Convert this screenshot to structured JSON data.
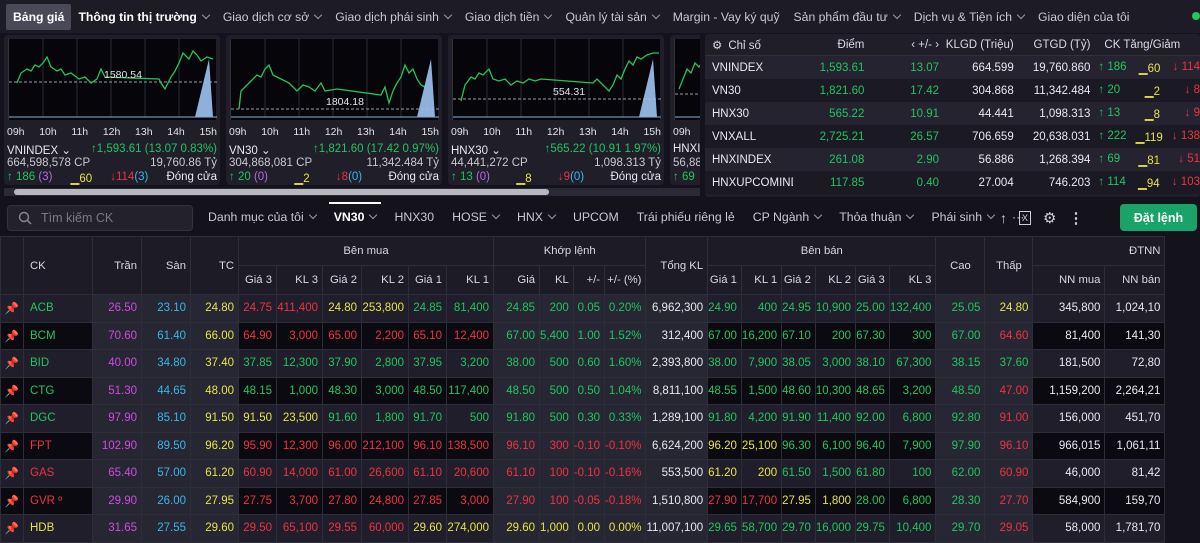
{
  "topnav": {
    "items": [
      {
        "label": "Bảng giá",
        "active": true
      },
      {
        "label": "Thông tin thị trường",
        "chevron": true
      },
      {
        "label": "Giao dịch cơ sở",
        "chevron": true
      },
      {
        "label": "Giao dịch phái sinh",
        "chevron": true
      },
      {
        "label": "Giao dịch tiền",
        "chevron": true
      },
      {
        "label": "Quản lý tài sản",
        "chevron": true
      },
      {
        "label": "Margin - Vay ký quỹ"
      },
      {
        "label": "Sản phẩm đầu tư",
        "chevron": true
      },
      {
        "label": "Dịch vụ & Tiện ích",
        "chevron": true
      },
      {
        "label": "Giao diện của tôi"
      }
    ]
  },
  "cards": [
    {
      "name": "VNINDEX",
      "ref_label": "1580.54",
      "value": "1,593.61 (13.07 0.83%)",
      "volume": "664,598,578 CP",
      "valueTy": "19,760.86 Tỷ",
      "up": "186",
      "up_ceil": "(3)",
      "flat": "60",
      "down": "114",
      "down_floor": "(3)",
      "status": "Đóng cửa"
    },
    {
      "name": "VN30",
      "ref_label": "1804.18",
      "value": "1,821.60 (17.42 0.97%)",
      "volume": "304,868,081 CP",
      "valueTy": "11,342.484 Tỷ",
      "up": "20",
      "up_ceil": "(0)",
      "flat": "2",
      "down": "8",
      "down_floor": "(0)",
      "status": "Đóng cửa"
    },
    {
      "name": "HNX30",
      "ref_label": "554.31",
      "value": "565.22 (10.91 1.97%)",
      "volume": "44,441,272 CP",
      "valueTy": "1,098.313 Tỷ",
      "up": "13",
      "up_ceil": "(0)",
      "flat": "8",
      "down": "9",
      "down_floor": "(0)",
      "status": "Đóng cửa"
    },
    {
      "name": "HNXI",
      "volume": "56,88",
      "up": "69"
    }
  ],
  "times": [
    "09h",
    "10h",
    "11h",
    "12h",
    "13h",
    "14h",
    "15h"
  ],
  "index_table": {
    "headers": {
      "name": "Chỉ số",
      "point": "Điểm",
      "change": "‹  +/-  ›",
      "klgd": "KLGD (Triệu)",
      "gtgd": "GTGD (Tỷ)",
      "updown": "CK Tăng/Giảm"
    },
    "rows": [
      {
        "name": "VNINDEX",
        "point": "1,593.61",
        "change": "13.07",
        "klgd": "664.599",
        "gtgd": "19,760.860",
        "up": "186",
        "flat": "60",
        "down": "114"
      },
      {
        "name": "VN30",
        "point": "1,821.60",
        "change": "17.42",
        "klgd": "304.868",
        "gtgd": "11,342.484",
        "up": "20",
        "flat": "2",
        "down": "8"
      },
      {
        "name": "HNX30",
        "point": "565.22",
        "change": "10.91",
        "klgd": "44.441",
        "gtgd": "1,098.313",
        "up": "13",
        "flat": "8",
        "down": "9"
      },
      {
        "name": "VNXALL",
        "point": "2,725.21",
        "change": "26.57",
        "klgd": "706.659",
        "gtgd": "20,638.031",
        "up": "222",
        "flat": "119",
        "down": "138"
      },
      {
        "name": "HNXINDEX",
        "point": "261.08",
        "change": "2.90",
        "klgd": "56.886",
        "gtgd": "1,268.394",
        "up": "69",
        "flat": "81",
        "down": "51"
      },
      {
        "name": "HNXUPCOMINDE",
        "point": "117.85",
        "change": "0.40",
        "klgd": "27.004",
        "gtgd": "746.203",
        "up": "114",
        "flat": "94",
        "down": "103"
      }
    ]
  },
  "search": {
    "placeholder": "Tìm kiếm CK"
  },
  "tabs": [
    {
      "label": "Danh mục của tôi",
      "chevron": true
    },
    {
      "label": "VN30",
      "chevron": true,
      "active": true
    },
    {
      "label": "HNX30"
    },
    {
      "label": "HOSE",
      "chevron": true
    },
    {
      "label": "HNX",
      "chevron": true
    },
    {
      "label": "UPCOM"
    },
    {
      "label": "Trái phiếu riêng lẻ"
    },
    {
      "label": "CP Ngành",
      "chevron": true
    },
    {
      "label": "Thỏa thuận",
      "chevron": true
    },
    {
      "label": "Phái sinh",
      "chevron": true
    },
    {
      "label": "···"
    }
  ],
  "order_button": "Đặt lệnh",
  "board": {
    "group_headers": {
      "buy": "Bên mua",
      "match": "Khớp lệnh",
      "sell": "Bên bán",
      "foreign": "ĐTNN"
    },
    "headers": {
      "ck": "CK",
      "ceil": "Trần",
      "floor": "Sàn",
      "ref": "TC",
      "b3p": "Giá 3",
      "b3v": "KL 3",
      "b2p": "Giá 2",
      "b2v": "KL 2",
      "b1p": "Giá 1",
      "b1v": "KL 1",
      "mp": "Giá",
      "mv": "KL",
      "ch": "+/-",
      "pct": "+/- (%)",
      "total": "Tổng KL",
      "s1p": "Giá 1",
      "s1v": "KL 1",
      "s2p": "Giá 2",
      "s2v": "KL 2",
      "s3p": "Giá 3",
      "s3v": "KL 3",
      "high": "Cao",
      "low": "Thấp",
      "nnb": "NN mua",
      "nns": "NN bán"
    },
    "rows": [
      {
        "ck": "ACB",
        "c": "up",
        "ceil": "26.50",
        "floor": "23.10",
        "ref": "24.80",
        "b3p": "24.75",
        "b3c": "dn",
        "b3v": "411,400",
        "b2p": "24.80",
        "b2c": "ref",
        "b2v": "253,800",
        "b1p": "24.85",
        "b1c": "up",
        "b1v": "81,400",
        "mp": "24.85",
        "mc": "up",
        "mv": "200",
        "ch": "0.05",
        "pct": "0.20%",
        "total": "6,962,300",
        "s1p": "24.90",
        "s1c": "up",
        "s1v": "400",
        "s2p": "24.95",
        "s2c": "up",
        "s2v": "10,900",
        "s3p": "25.00",
        "s3c": "up",
        "s3v": "132,400",
        "high": "25.05",
        "hc": "up",
        "low": "24.80",
        "lc": "ref",
        "nnb": "345,800",
        "nns": "1,024,10"
      },
      {
        "ck": "BCM",
        "c": "up",
        "ceil": "70.60",
        "floor": "61.40",
        "ref": "66.00",
        "b3p": "64.90",
        "b3c": "dn",
        "b3v": "3,000",
        "b2p": "65.00",
        "b2c": "dn",
        "b2v": "2,200",
        "b1p": "65.10",
        "b1c": "dn",
        "b1v": "12,400",
        "mp": "67.00",
        "mc": "up",
        "mv": "5,400",
        "ch": "1.00",
        "pct": "1.52%",
        "total": "312,400",
        "s1p": "67.00",
        "s1c": "up",
        "s1v": "16,200",
        "s2p": "67.10",
        "s2c": "up",
        "s2v": "200",
        "s3p": "67.30",
        "s3c": "up",
        "s3v": "300",
        "high": "67.00",
        "hc": "up",
        "low": "64.60",
        "lc": "dn",
        "nnb": "81,400",
        "nns": "141,30"
      },
      {
        "ck": "BID",
        "c": "up",
        "ceil": "40.00",
        "floor": "34.80",
        "ref": "37.40",
        "b3p": "37.85",
        "b3c": "up",
        "b3v": "12,300",
        "b2p": "37.90",
        "b2c": "up",
        "b2v": "2,800",
        "b1p": "37.95",
        "b1c": "up",
        "b1v": "3,200",
        "mp": "38.00",
        "mc": "up",
        "mv": "500",
        "ch": "0.60",
        "pct": "1.60%",
        "total": "2,393,800",
        "s1p": "38.00",
        "s1c": "up",
        "s1v": "7,900",
        "s2p": "38.05",
        "s2c": "up",
        "s2v": "3,000",
        "s3p": "38.10",
        "s3c": "up",
        "s3v": "67,300",
        "high": "38.15",
        "hc": "up",
        "low": "37.60",
        "lc": "up",
        "nnb": "181,500",
        "nns": "72,80"
      },
      {
        "ck": "CTG",
        "c": "up",
        "ceil": "51.30",
        "floor": "44.65",
        "ref": "48.00",
        "b3p": "48.15",
        "b3c": "up",
        "b3v": "1,000",
        "b2p": "48.30",
        "b2c": "up",
        "b2v": "3,000",
        "b1p": "48.50",
        "b1c": "up",
        "b1v": "117,400",
        "mp": "48.50",
        "mc": "up",
        "mv": "500",
        "ch": "0.50",
        "pct": "1.04%",
        "total": "8,811,100",
        "s1p": "48.55",
        "s1c": "up",
        "s1v": "1,500",
        "s2p": "48.60",
        "s2c": "up",
        "s2v": "10,300",
        "s3p": "48.65",
        "s3c": "up",
        "s3v": "3,200",
        "high": "48.50",
        "hc": "up",
        "low": "47.00",
        "lc": "dn",
        "nnb": "1,159,200",
        "nns": "2,264,21"
      },
      {
        "ck": "DGC",
        "c": "up",
        "ceil": "97.90",
        "floor": "85.10",
        "ref": "91.50",
        "b3p": "91.50",
        "b3c": "ref",
        "b3v": "23,500",
        "b2p": "91.60",
        "b2c": "up",
        "b2v": "1,800",
        "b1p": "91.70",
        "b1c": "up",
        "b1v": "500",
        "mp": "91.80",
        "mc": "up",
        "mv": "500",
        "ch": "0.30",
        "pct": "0.33%",
        "total": "1,289,100",
        "s1p": "91.80",
        "s1c": "up",
        "s1v": "4,200",
        "s2p": "91.90",
        "s2c": "up",
        "s2v": "11,400",
        "s3p": "92.00",
        "s3c": "up",
        "s3v": "6,800",
        "high": "92.80",
        "hc": "up",
        "low": "91.00",
        "lc": "dn",
        "nnb": "156,000",
        "nns": "451,70"
      },
      {
        "ck": "FPT",
        "c": "dn",
        "ceil": "102.90",
        "floor": "89.50",
        "ref": "96.20",
        "b3p": "95.90",
        "b3c": "dn",
        "b3v": "12,300",
        "b2p": "96.00",
        "b2c": "dn",
        "b2v": "212,100",
        "b1p": "96.10",
        "b1c": "dn",
        "b1v": "138,500",
        "mp": "96.10",
        "mc": "dn",
        "mv": "300",
        "ch": "-0.10",
        "pct": "-0.10%",
        "total": "6,624,200",
        "s1p": "96.20",
        "s1c": "ref",
        "s1v": "25,100",
        "s2p": "96.30",
        "s2c": "up",
        "s2v": "6,100",
        "s3p": "96.40",
        "s3c": "up",
        "s3v": "7,900",
        "high": "97.90",
        "hc": "up",
        "low": "96.10",
        "lc": "dn",
        "nnb": "966,015",
        "nns": "1,061,11"
      },
      {
        "ck": "GAS",
        "c": "dn",
        "ceil": "65.40",
        "floor": "57.00",
        "ref": "61.20",
        "b3p": "60.90",
        "b3c": "dn",
        "b3v": "14,000",
        "b2p": "61.00",
        "b2c": "dn",
        "b2v": "26,600",
        "b1p": "61.10",
        "b1c": "dn",
        "b1v": "20,600",
        "mp": "61.10",
        "mc": "dn",
        "mv": "100",
        "ch": "-0.10",
        "pct": "-0.16%",
        "total": "553,500",
        "s1p": "61.20",
        "s1c": "ref",
        "s1v": "200",
        "s2p": "61.50",
        "s2c": "up",
        "s2v": "1,500",
        "s3p": "61.80",
        "s3c": "up",
        "s3v": "100",
        "high": "62.00",
        "hc": "up",
        "low": "60.90",
        "lc": "dn",
        "nnb": "46,000",
        "nns": "81,42"
      },
      {
        "ck": "GVR º",
        "c": "dn",
        "ceil": "29.90",
        "floor": "26.00",
        "ref": "27.95",
        "b3p": "27.75",
        "b3c": "dn",
        "b3v": "3,700",
        "b2p": "27.80",
        "b2c": "dn",
        "b2v": "24,800",
        "b1p": "27.85",
        "b1c": "dn",
        "b1v": "3,000",
        "mp": "27.90",
        "mc": "dn",
        "mv": "100",
        "ch": "-0.05",
        "pct": "-0.18%",
        "total": "1,510,800",
        "s1p": "27.90",
        "s1c": "dn",
        "s1v": "17,700",
        "s2p": "27.95",
        "s2c": "ref",
        "s2v": "1,800",
        "s3p": "28.00",
        "s3c": "up",
        "s3v": "6,800",
        "high": "28.30",
        "hc": "up",
        "low": "27.70",
        "lc": "dn",
        "nnb": "584,900",
        "nns": "159,70"
      },
      {
        "ck": "HDB",
        "c": "ref",
        "ceil": "31.65",
        "floor": "27.55",
        "ref": "29.60",
        "b3p": "29.50",
        "b3c": "dn",
        "b3v": "65,100",
        "b2p": "29.55",
        "b2c": "dn",
        "b2v": "60,000",
        "b1p": "29.60",
        "b1c": "ref",
        "b1v": "274,000",
        "mp": "29.60",
        "mc": "ref",
        "mv": "1,000",
        "ch": "0.00",
        "pct": "0.00%",
        "total": "11,007,100",
        "s1p": "29.65",
        "s1c": "up",
        "s1v": "58,700",
        "s2p": "29.70",
        "s2c": "up",
        "s2v": "16,000",
        "s3p": "29.75",
        "s3c": "up",
        "s3v": "10,400",
        "high": "29.70",
        "hc": "up",
        "low": "29.05",
        "lc": "dn",
        "nnb": "58,000",
        "nns": "1,781,70"
      }
    ]
  }
}
